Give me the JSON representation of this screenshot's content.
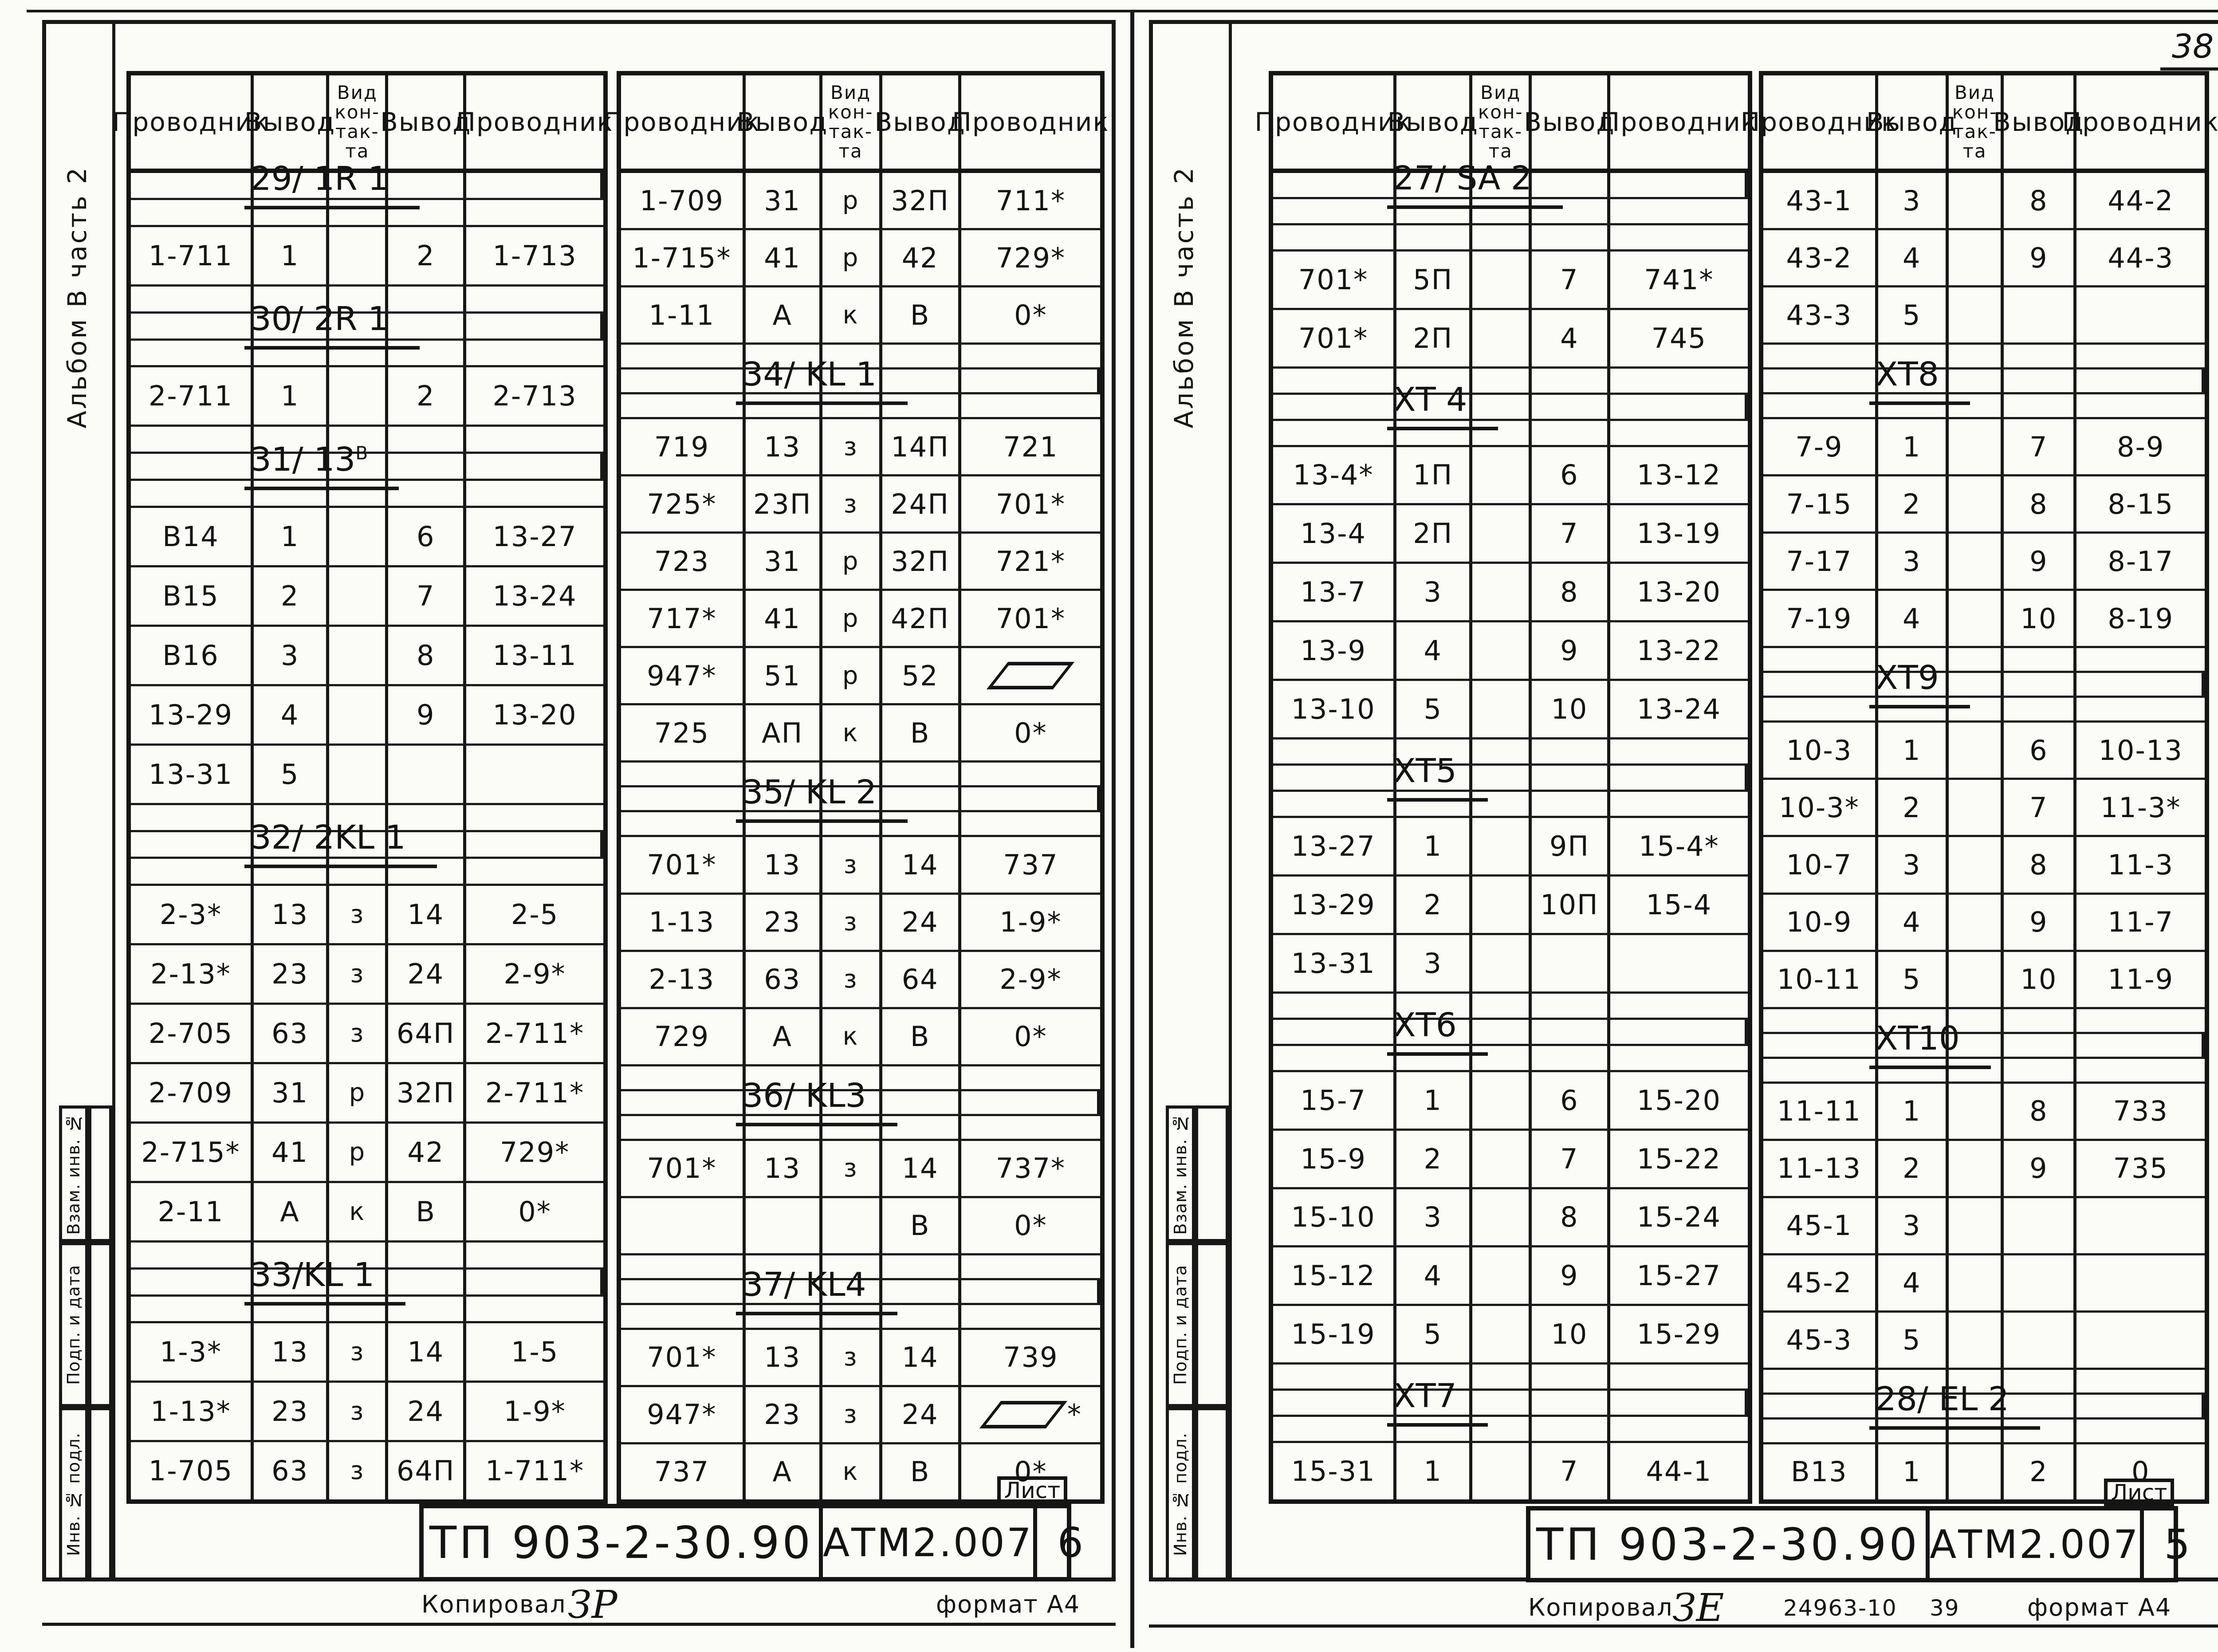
{
  "corner_page_number": "38",
  "header": {
    "c1": "Проводник",
    "c2": "Вывод",
    "c3": "Вид\nкон-\nтак-\nта",
    "c4": "Вывод",
    "c5": "Проводник"
  },
  "pages": [
    {
      "side_note": "Альбом В   часть 2",
      "stamps": [
        "Взам. инв. №",
        "Подп. и дата",
        "Инв. № подл."
      ],
      "tables": [
        {
          "rows": [
            {
              "g": "29/ 1R 1"
            },
            0,
            [
              "1-711",
              "1",
              "",
              "2",
              "1-713"
            ],
            0,
            {
              "g": "30/ 2R 1"
            },
            0,
            [
              "2-711",
              "1",
              "",
              "2",
              "2-713"
            ],
            0,
            {
              "g": "31/ 13^В"
            },
            0,
            [
              "В14",
              "1",
              "",
              "6",
              "13-27"
            ],
            [
              "В15",
              "2",
              "",
              "7",
              "13-24"
            ],
            [
              "В16",
              "3",
              "",
              "8",
              "13-11"
            ],
            [
              "13-29",
              "4",
              "",
              "9",
              "13-20"
            ],
            [
              "13-31",
              "5",
              "",
              "",
              ""
            ],
            0,
            {
              "g": "32/ 2KL 1"
            },
            0,
            [
              "2-3*",
              "13",
              "з",
              "14",
              "2-5"
            ],
            [
              "2-13*",
              "23",
              "з",
              "24",
              "2-9*"
            ],
            [
              "2-705",
              "63",
              "з",
              "64П",
              "2-711*"
            ],
            [
              "2-709",
              "31",
              "р",
              "32П",
              "2-711*"
            ],
            [
              "2-715*",
              "41",
              "р",
              "42",
              "729*"
            ],
            [
              "2-11",
              "А",
              "к",
              "В",
              "0*"
            ],
            0,
            {
              "g": "33/KL 1"
            },
            0,
            [
              "1-3*",
              "13",
              "з",
              "14",
              "1-5"
            ],
            [
              "1-13*",
              "23",
              "з",
              "24",
              "1-9*"
            ],
            [
              "1-705",
              "63",
              "з",
              "64П",
              "1-711*"
            ]
          ]
        },
        {
          "rows": [
            [
              "1-709",
              "31",
              "р",
              "32П",
              "711*"
            ],
            [
              "1-715*",
              "41",
              "р",
              "42",
              "729*"
            ],
            [
              "1-11",
              "А",
              "к",
              "В",
              "0*"
            ],
            0,
            {
              "g": "34/ KL 1"
            },
            0,
            [
              "719",
              "13",
              "з",
              "14П",
              "721"
            ],
            [
              "725*",
              "23П",
              "з",
              "24П",
              "701*"
            ],
            [
              "723",
              "31",
              "р",
              "32П",
              "721*"
            ],
            [
              "717*",
              "41",
              "р",
              "42П",
              "701*"
            ],
            [
              "947*",
              "51",
              "р",
              "52",
              "▱"
            ],
            [
              "725",
              "АП",
              "к",
              "В",
              "0*"
            ],
            0,
            {
              "g": "35/ KL 2"
            },
            0,
            [
              "701*",
              "13",
              "з",
              "14",
              "737"
            ],
            [
              "1-13",
              "23",
              "з",
              "24",
              "1-9*"
            ],
            [
              "2-13",
              "63",
              "з",
              "64",
              "2-9*"
            ],
            [
              "729",
              "А",
              "к",
              "В",
              "0*"
            ],
            0,
            {
              "g": "36/ KL3"
            },
            0,
            [
              "701*",
              "13",
              "з",
              "14",
              "737*"
            ],
            [
              "",
              "",
              "",
              "В",
              "0*"
            ],
            0,
            {
              "g": "37/ KL4"
            },
            0,
            [
              "701*",
              "13",
              "з",
              "14",
              "739"
            ],
            [
              "947*",
              "23",
              "з",
              "24",
              "▱*"
            ],
            [
              "737",
              "А",
              "к",
              "В",
              "0*"
            ]
          ]
        }
      ],
      "title_block": {
        "project": "ТП 903-2-30.90",
        "doc": "АТМ2.007",
        "sheet_label": "Лист",
        "sheet_number": "6"
      },
      "footer": {
        "copied_label": "Копировал",
        "copied_sign": "ЗР",
        "format_label": "формат А4"
      }
    },
    {
      "side_note": "Альбом В   часть 2",
      "stamps": [
        "Взам. инв. №",
        "Подп. и дата",
        "Инв. № подл."
      ],
      "tables": [
        {
          "rows": [
            {
              "g": "27/ SA 2"
            },
            0,
            0,
            [
              "701*",
              "5П",
              "",
              "7",
              "741*"
            ],
            [
              "701*",
              "2П",
              "",
              "4",
              "745"
            ],
            0,
            {
              "g": "ХТ 4"
            },
            0,
            [
              "13-4*",
              "1П",
              "",
              "6",
              "13-12"
            ],
            [
              "13-4",
              "2П",
              "",
              "7",
              "13-19"
            ],
            [
              "13-7",
              "3",
              "",
              "8",
              "13-20"
            ],
            [
              "13-9",
              "4",
              "",
              "9",
              "13-22"
            ],
            [
              "13-10",
              "5",
              "",
              "10",
              "13-24"
            ],
            0,
            {
              "g": "ХТ5"
            },
            0,
            [
              "13-27",
              "1",
              "",
              "9П",
              "15-4*"
            ],
            [
              "13-29",
              "2",
              "",
              "10П",
              "15-4"
            ],
            [
              "13-31",
              "3",
              "",
              "",
              ""
            ],
            0,
            {
              "g": "ХТ6"
            },
            0,
            [
              "15-7",
              "1",
              "",
              "6",
              "15-20"
            ],
            [
              "15-9",
              "2",
              "",
              "7",
              "15-22"
            ],
            [
              "15-10",
              "3",
              "",
              "8",
              "15-24"
            ],
            [
              "15-12",
              "4",
              "",
              "9",
              "15-27"
            ],
            [
              "15-19",
              "5",
              "",
              "10",
              "15-29"
            ],
            0,
            {
              "g": "ХТ7"
            },
            0,
            [
              "15-31",
              "1",
              "",
              "7",
              "44-1"
            ]
          ]
        },
        {
          "rows": [
            [
              "43-1",
              "3",
              "",
              "8",
              "44-2"
            ],
            [
              "43-2",
              "4",
              "",
              "9",
              "44-3"
            ],
            [
              "43-3",
              "5",
              "",
              "",
              ""
            ],
            0,
            {
              "g": "ХТ8"
            },
            0,
            [
              "7-9",
              "1",
              "",
              "7",
              "8-9"
            ],
            [
              "7-15",
              "2",
              "",
              "8",
              "8-15"
            ],
            [
              "7-17",
              "3",
              "",
              "9",
              "8-17"
            ],
            [
              "7-19",
              "4",
              "",
              "10",
              "8-19"
            ],
            0,
            {
              "g": "ХТ9"
            },
            0,
            [
              "10-3",
              "1",
              "",
              "6",
              "10-13"
            ],
            [
              "10-3*",
              "2",
              "",
              "7",
              "11-3*"
            ],
            [
              "10-7",
              "3",
              "",
              "8",
              "11-3"
            ],
            [
              "10-9",
              "4",
              "",
              "9",
              "11-7"
            ],
            [
              "10-11",
              "5",
              "",
              "10",
              "11-9"
            ],
            0,
            {
              "g": "ХТ10"
            },
            0,
            [
              "11-11",
              "1",
              "",
              "8",
              "733"
            ],
            [
              "11-13",
              "2",
              "",
              "9",
              "735"
            ],
            [
              "45-1",
              "3",
              "",
              "",
              ""
            ],
            [
              "45-2",
              "4",
              "",
              "",
              ""
            ],
            [
              "45-3",
              "5",
              "",
              "",
              ""
            ],
            0,
            {
              "g": "28/ EL 2"
            },
            0,
            [
              "В13",
              "1",
              "",
              "2",
              "0"
            ]
          ]
        }
      ],
      "title_block": {
        "project": "ТП 903-2-30.90",
        "doc": "АТМ2.007",
        "sheet_label": "Лист",
        "sheet_number": "5"
      },
      "footer": {
        "copied_label": "Копировал",
        "copied_sign": "ЗЕ",
        "order_number": "24963-10",
        "count": "39",
        "format_label": "формат А4"
      }
    }
  ]
}
